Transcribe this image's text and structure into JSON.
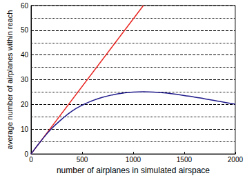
{
  "chart_data": {
    "type": "line",
    "x_label": "number of airplanes in simulated airspace",
    "y_label": "average number of airplanes within reach",
    "xlim": [
      0,
      2000
    ],
    "xticks": [
      0,
      500,
      1000,
      1500,
      2000
    ],
    "ylim": [
      0,
      60
    ],
    "yticks": [
      0,
      10,
      20,
      30,
      40,
      50,
      60
    ],
    "grid": true,
    "series": [
      {
        "color": "#e8231f",
        "x": [
          0,
          1100
        ],
        "values": [
          0,
          60
        ]
      },
      {
        "color": "#1f1a8a",
        "x": [
          0,
          100,
          200,
          300,
          400,
          500,
          600,
          700,
          800,
          900,
          1000,
          1100,
          1200,
          1300,
          1400,
          1500,
          1600,
          1700,
          1800,
          1900,
          2000
        ],
        "values": [
          0,
          5.4,
          10.2,
          14,
          17.3,
          19.7,
          21.5,
          22.9,
          23.9,
          24.6,
          25,
          25.1,
          25,
          24.7,
          24.2,
          23.6,
          23,
          22.3,
          21.6,
          20.8,
          20.1
        ]
      }
    ]
  }
}
